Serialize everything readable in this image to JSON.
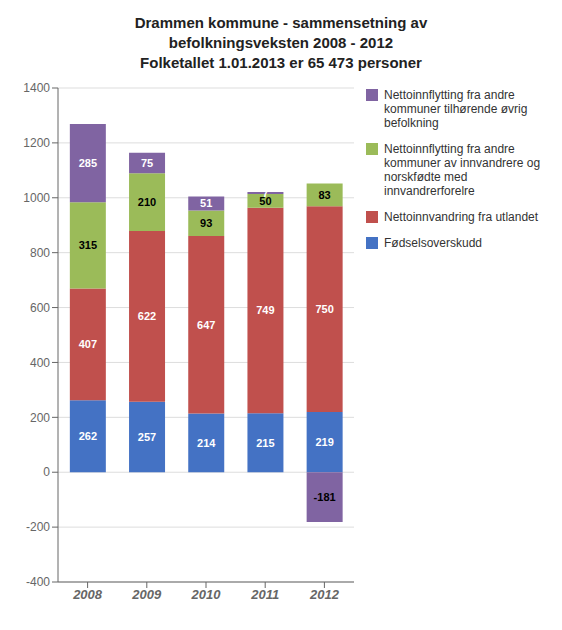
{
  "chart_data": {
    "type": "bar",
    "title": "Drammen kommune - sammensetning av\nbefolkningsveksten 2008 - 2012\nFolketallet 1.01.2013 er 65 473 personer",
    "categories": [
      "2008",
      "2009",
      "2010",
      "2011",
      "2012"
    ],
    "series": [
      {
        "name": "Fødselsoverskudd",
        "color": "#4472C4",
        "values": [
          262,
          257,
          214,
          215,
          219
        ]
      },
      {
        "name": "Nettoinnvandring fra utlandet",
        "color": "#C0504D",
        "values": [
          407,
          622,
          647,
          749,
          750
        ]
      },
      {
        "name": "Nettoinnflytting fra andre\nkommuner av innvandrere og\nnorskfødte med\ninnvandrerforelre",
        "color": "#9BBB59",
        "values": [
          315,
          210,
          93,
          50,
          83
        ]
      },
      {
        "name": "Nettoinnflytting fra andre\nkommuner tilhørende øvrig\nbefolkning",
        "color": "#8064A2",
        "values": [
          285,
          75,
          51,
          7,
          -181
        ]
      }
    ],
    "ylim": [
      -400,
      1400
    ],
    "yticks": [
      -400,
      -200,
      0,
      200,
      400,
      600,
      800,
      1000,
      1200,
      1400
    ],
    "stacked": true,
    "grid": true,
    "legend": "right",
    "data_labels": true
  }
}
